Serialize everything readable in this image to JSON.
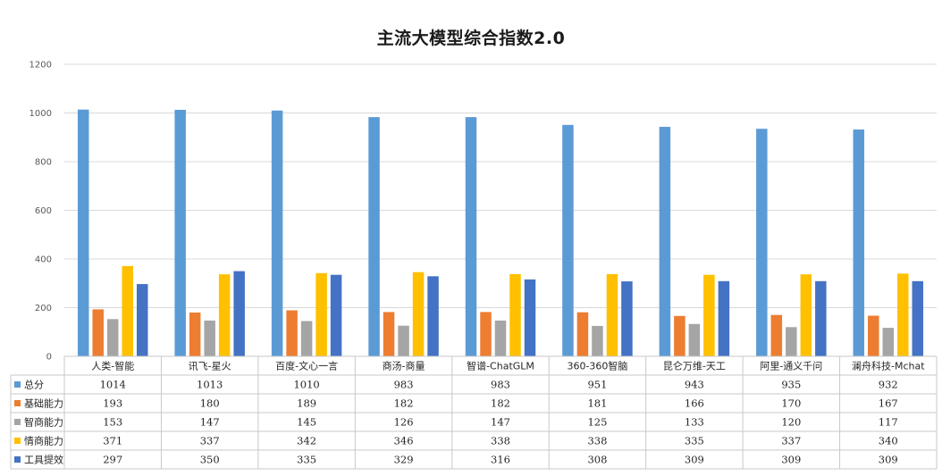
{
  "chart_data": {
    "type": "bar",
    "title": "主流大模型综合指数2.0",
    "categories": [
      "人类-智能",
      "讯飞-星火",
      "百度-文心一言",
      "商汤-商量",
      "智谱-ChatGLM",
      "360-360智脑",
      "昆仑万维-天工",
      "阿里-通义千问",
      "澜舟科技-Mchat"
    ],
    "series": [
      {
        "name": "总分",
        "color": "#5B9BD5",
        "values": [
          1014,
          1013,
          1010,
          983,
          983,
          951,
          943,
          935,
          932
        ]
      },
      {
        "name": "基础能力",
        "color": "#ED7D31",
        "values": [
          193,
          180,
          189,
          182,
          182,
          181,
          166,
          170,
          167
        ]
      },
      {
        "name": "智商能力",
        "color": "#A5A5A5",
        "values": [
          153,
          147,
          145,
          126,
          147,
          125,
          133,
          120,
          117
        ]
      },
      {
        "name": "情商能力",
        "color": "#FFC000",
        "values": [
          371,
          337,
          342,
          346,
          338,
          338,
          335,
          337,
          340
        ]
      },
      {
        "name": "工具提效",
        "color": "#4472C4",
        "values": [
          297,
          350,
          335,
          329,
          316,
          308,
          309,
          309,
          309
        ]
      }
    ],
    "y_ticks": [
      "0",
      "200",
      "400",
      "600",
      "800",
      "1000",
      "1200"
    ],
    "ylim": [
      0,
      1200
    ],
    "grid": true,
    "legend": "data-table"
  }
}
